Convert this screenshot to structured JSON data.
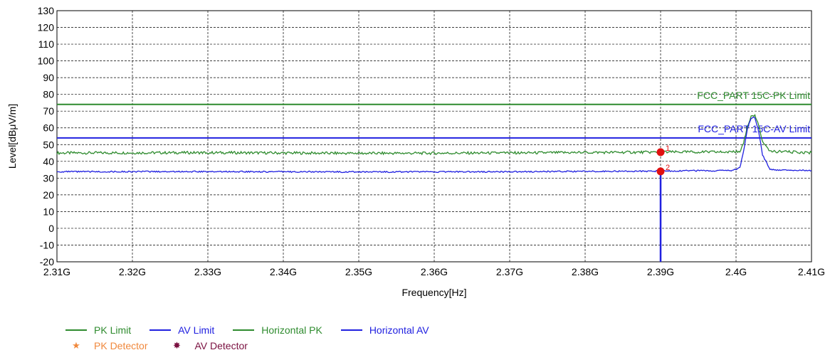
{
  "chart_data": {
    "type": "line",
    "xlabel": "Frequency[Hz]",
    "ylabel": "Level[dBμV/m]",
    "xlim": [
      2.31,
      2.41
    ],
    "ylim": [
      -20,
      130
    ],
    "x_unit_suffix": "G",
    "x_ticks": [
      "2.31G",
      "2.32G",
      "2.33G",
      "2.34G",
      "2.35G",
      "2.36G",
      "2.37G",
      "2.38G",
      "2.39G",
      "2.4G",
      "2.41G"
    ],
    "y_ticks": [
      "-20",
      "-10",
      "0",
      "10",
      "20",
      "30",
      "40",
      "50",
      "60",
      "70",
      "80",
      "90",
      "100",
      "110",
      "120",
      "130"
    ],
    "grid": true,
    "limit_lines": [
      {
        "name": "PK Limit",
        "label": "FCC_PART 15C-PK Limit",
        "level": 74,
        "color": "#2e8b2e"
      },
      {
        "name": "AV Limit",
        "label": "FCC_PART 15C-AV Limit",
        "level": 54,
        "color": "#2020e0"
      }
    ],
    "series": [
      {
        "name": "Horizontal PK",
        "color": "#2e8b2e",
        "x": [
          2.31,
          2.33,
          2.35,
          2.37,
          2.38,
          2.39,
          2.395,
          2.3995,
          2.4005,
          2.401,
          2.4015,
          2.402,
          2.4025,
          2.403,
          2.4035,
          2.4045,
          2.41
        ],
        "y": [
          45,
          45.2,
          44.8,
          45,
          45.3,
          45.5,
          45.6,
          45.5,
          46,
          51,
          61,
          67,
          67,
          62,
          52,
          46,
          45.2
        ]
      },
      {
        "name": "Horizontal AV",
        "color": "#2020e0",
        "x": [
          2.31,
          2.33,
          2.35,
          2.37,
          2.38,
          2.39,
          2.395,
          2.3995,
          2.4005,
          2.401,
          2.4015,
          2.402,
          2.4025,
          2.403,
          2.4035,
          2.4045,
          2.41
        ],
        "y": [
          33.8,
          33.9,
          33.7,
          33.8,
          34,
          34.2,
          34.4,
          34.5,
          36,
          46,
          59,
          66,
          66,
          58,
          44,
          35,
          34.5
        ]
      }
    ],
    "markers": [
      {
        "label": "1",
        "x": 2.39,
        "y": 45.5,
        "color": "#e01010"
      },
      {
        "label": "2",
        "x": 2.39,
        "y": 34,
        "color": "#e01010"
      }
    ],
    "vertical_line": {
      "x": 2.39,
      "color": "#2020e0"
    }
  },
  "legend": {
    "row1": [
      {
        "label": "PK Limit",
        "color": "#2e8b2e"
      },
      {
        "label": "AV Limit",
        "color": "#2020e0"
      },
      {
        "label": "Horizontal PK",
        "color": "#2e8b2e"
      },
      {
        "label": "Horizontal AV",
        "color": "#2020e0"
      }
    ],
    "row2": [
      {
        "label": "PK Detector",
        "symbol": "★",
        "color": "#f0883c"
      },
      {
        "label": "AV Detector",
        "symbol": "✸",
        "color": "#7a1040"
      }
    ]
  }
}
